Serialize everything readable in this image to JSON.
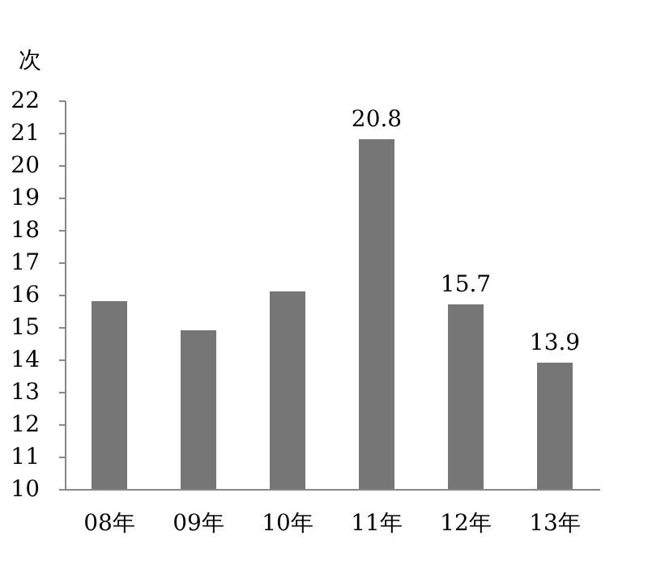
{
  "chart_data": {
    "type": "bar",
    "ylabel": "次",
    "categories": [
      "08年",
      "09年",
      "10年",
      "11年",
      "12年",
      "13年"
    ],
    "values": [
      15.8,
      14.9,
      16.1,
      20.8,
      15.7,
      13.9
    ],
    "value_labels": [
      null,
      null,
      null,
      "20.8",
      "15.7",
      "13.9"
    ],
    "color": "#767676",
    "ylim": [
      10,
      22
    ],
    "yticks": [
      10,
      11,
      12,
      13,
      14,
      15,
      16,
      17,
      18,
      19,
      20,
      21,
      22
    ],
    "grid": false
  }
}
